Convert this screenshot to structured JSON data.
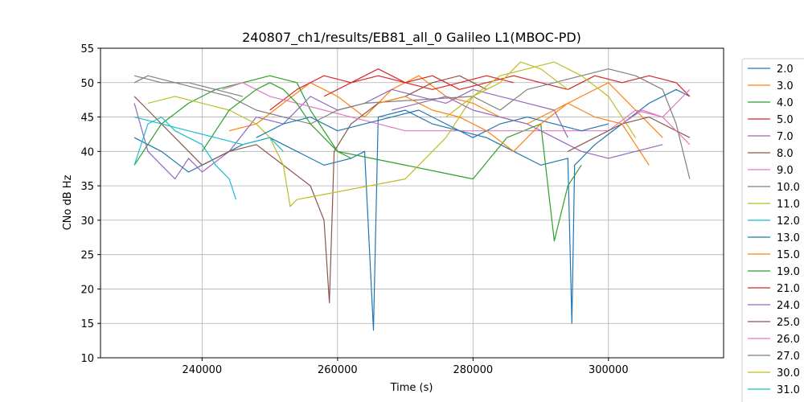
{
  "chart_data": {
    "type": "line",
    "title": "240807_ch1/results/EB81_all_0 Galileo L1(MBOC-PD)",
    "xlabel": "Time (s)",
    "ylabel": "CNo dB Hz",
    "xlim": [
      225000,
      317000
    ],
    "ylim": [
      10,
      55
    ],
    "xticks": [
      240000,
      260000,
      280000,
      300000
    ],
    "yticks": [
      10,
      15,
      20,
      25,
      30,
      35,
      40,
      45,
      50,
      55
    ],
    "grid": true,
    "legend_position": "right",
    "series": [
      {
        "name": "2.0",
        "color": "#1f77b4",
        "x": [
          230000,
          234000,
          238000,
          242000,
          246000,
          250000,
          254000,
          258000,
          262000,
          264000,
          265300,
          266000,
          270000,
          274000,
          278000,
          282000,
          286000,
          290000,
          294000,
          294600,
          295000,
          298000,
          302000,
          306000,
          310000,
          312000
        ],
        "y": [
          42,
          40,
          37,
          39,
          41,
          42,
          40,
          38,
          39,
          40,
          14,
          45,
          46,
          44,
          43,
          42,
          40,
          38,
          39,
          15,
          38,
          41,
          44,
          47,
          49,
          48
        ]
      },
      {
        "name": "3.0",
        "color": "#ff7f0e",
        "x": [
          244000,
          248000,
          252000,
          256000,
          260000,
          264000,
          268000,
          272000,
          276000,
          280000,
          284000,
          288000,
          292000,
          296000,
          300000,
          304000,
          308000
        ],
        "y": [
          43,
          44,
          47,
          50,
          48,
          45,
          49,
          51,
          48,
          47,
          45,
          44,
          46,
          48,
          50,
          46,
          42
        ]
      },
      {
        "name": "4.0",
        "color": "#2ca02c",
        "x": [
          230000,
          234000,
          238000,
          242000,
          246000,
          250000,
          254000,
          256000,
          260000,
          265000,
          270000,
          275000,
          280000,
          285000,
          290000,
          292000,
          294000,
          296000
        ],
        "y": [
          38,
          44,
          47,
          49,
          50,
          51,
          50,
          46,
          40,
          39,
          38,
          37,
          36,
          42,
          44,
          27,
          35,
          38
        ]
      },
      {
        "name": "5.0",
        "color": "#d62728",
        "x": [
          250000,
          254000,
          258000,
          262000,
          266000,
          270000,
          274000,
          278000,
          282000,
          286000,
          290000,
          294000,
          298000,
          302000,
          306000,
          310000,
          312000
        ],
        "y": [
          46,
          49,
          51,
          50,
          52,
          50,
          51,
          49,
          50,
          51,
          50,
          49,
          51,
          50,
          51,
          50,
          48
        ]
      },
      {
        "name": "7.0",
        "color": "#9467bd",
        "x": [
          230000,
          232000,
          234000,
          236000,
          238000,
          240000,
          244000,
          248000,
          252000,
          256000,
          260000,
          264000,
          268000,
          272000,
          276000,
          280000,
          284000,
          288000,
          292000,
          294000
        ],
        "y": [
          47,
          40,
          38,
          36,
          39,
          37,
          40,
          45,
          44,
          48,
          46,
          47,
          49,
          48,
          47,
          49,
          48,
          47,
          46,
          42
        ]
      },
      {
        "name": "8.0",
        "color": "#8c564b",
        "x": [
          230000,
          232000,
          236000,
          240000,
          244000,
          248000,
          252000,
          256000,
          258000,
          258800,
          259500,
          262000,
          266000,
          270000,
          274000,
          278000,
          282000
        ],
        "y": [
          48,
          46,
          42,
          38,
          40,
          41,
          38,
          35,
          30,
          18,
          40,
          44,
          47,
          48,
          50,
          51,
          49
        ]
      },
      {
        "name": "9.0",
        "color": "#e377c2",
        "x": [
          243000,
          246000,
          250000,
          254000,
          258000,
          262000,
          266000,
          270000,
          300000,
          304000,
          308000,
          310000,
          312000
        ],
        "y": [
          49,
          50,
          48,
          47,
          46,
          45,
          44,
          43,
          43,
          46,
          45,
          47,
          49
        ]
      },
      {
        "name": "10.0",
        "color": "#7f7f7f",
        "x": [
          230000,
          232000,
          236000,
          240000,
          244000,
          248000,
          252000,
          256000,
          260000,
          264000,
          280000,
          284000,
          288000,
          292000,
          296000,
          300000,
          304000,
          308000,
          310000,
          312000
        ],
        "y": [
          50,
          51,
          50,
          49,
          48,
          46,
          45,
          44,
          46,
          47,
          48,
          46,
          49,
          50,
          51,
          52,
          51,
          49,
          44,
          36
        ]
      },
      {
        "name": "11.0",
        "color": "#bcbd22",
        "x": [
          232000,
          236000,
          240000,
          244000,
          248000,
          250000,
          252000,
          253000,
          254000,
          270000,
          276000,
          280000,
          284000,
          288000,
          292000,
          296000,
          300000,
          304000
        ],
        "y": [
          47,
          48,
          47,
          46,
          44,
          42,
          38,
          32,
          33,
          36,
          42,
          48,
          51,
          52,
          53,
          51,
          48,
          42
        ]
      },
      {
        "name": "12.0",
        "color": "#17becf",
        "x": [
          230000,
          232000,
          234000,
          236000,
          238000,
          240000,
          242000,
          244000,
          245000
        ],
        "y": [
          38,
          44,
          45,
          43,
          42,
          41,
          38,
          36,
          33
        ]
      },
      {
        "name": "13.0",
        "color": "#1f77b4",
        "x": [
          248000,
          252000,
          256000,
          260000,
          264000,
          268000,
          272000,
          276000,
          280000,
          284000,
          288000,
          292000,
          296000,
          300000
        ],
        "y": [
          42,
          44,
          45,
          43,
          44,
          45,
          46,
          44,
          42,
          44,
          45,
          44,
          43,
          44
        ]
      },
      {
        "name": "15.0",
        "color": "#ff7f0e",
        "x": [
          266000,
          270000,
          274000,
          278000,
          282000,
          286000,
          290000,
          294000,
          298000,
          302000,
          306000
        ],
        "y": [
          47,
          48,
          46,
          45,
          43,
          40,
          44,
          47,
          45,
          44,
          38
        ]
      },
      {
        "name": "19.0",
        "color": "#2ca02c",
        "x": [
          240000,
          244000,
          248000,
          250000,
          252000,
          254000,
          256000,
          258000,
          260000,
          262000
        ],
        "y": [
          40,
          46,
          49,
          50,
          49,
          47,
          44,
          42,
          40,
          39
        ]
      },
      {
        "name": "21.0",
        "color": "#d62728",
        "x": [
          258000,
          262000,
          266000,
          270000,
          274000,
          278000,
          282000,
          286000
        ],
        "y": [
          48,
          50,
          51,
          50,
          49,
          50,
          51,
          50
        ]
      },
      {
        "name": "24.0",
        "color": "#9467bd",
        "x": [
          268000,
          272000,
          276000,
          280000,
          284000,
          288000,
          292000,
          296000,
          300000,
          304000,
          308000
        ],
        "y": [
          46,
          47,
          48,
          46,
          45,
          44,
          42,
          40,
          39,
          40,
          41
        ]
      },
      {
        "name": "25.0",
        "color": "#8c564b",
        "x": [
          294000,
          298000,
          302000,
          306000,
          310000,
          312000
        ],
        "y": [
          40,
          42,
          44,
          45,
          43,
          42
        ]
      },
      {
        "name": "26.0",
        "color": "#e377c2",
        "x": [
          302000,
          305000,
          308000,
          310000,
          312000
        ],
        "y": [
          44,
          46,
          45,
          43,
          41
        ]
      },
      {
        "name": "27.0",
        "color": "#7f7f7f",
        "x": [
          230000,
          234000,
          238000,
          242000,
          246000
        ],
        "y": [
          51,
          50,
          50,
          49,
          48
        ]
      },
      {
        "name": "30.0",
        "color": "#bcbd22",
        "x": [
          276000,
          280000,
          284000,
          287000,
          290000,
          294000
        ],
        "y": [
          45,
          48,
          50,
          53,
          52,
          49
        ]
      },
      {
        "name": "31.0",
        "color": "#17becf",
        "x": [
          230000,
          234000,
          238000,
          242000,
          246000,
          250000,
          252000
        ],
        "y": [
          45,
          44,
          43,
          42,
          41,
          42,
          40
        ]
      }
    ]
  }
}
